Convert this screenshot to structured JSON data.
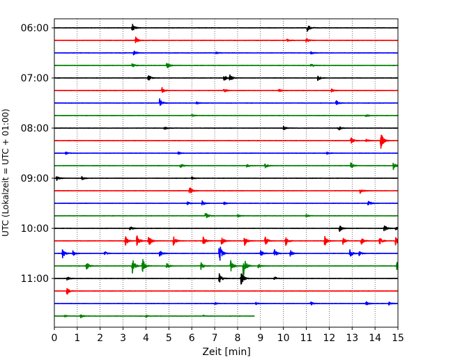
{
  "chart_data": {
    "type": "line",
    "title": "",
    "xlabel": "Zeit  [min]",
    "ylabel": "UTC (Lokalzeit = UTC + 01:00)",
    "xlim": [
      0,
      15
    ],
    "x_ticks": [
      "0",
      "1",
      "2",
      "3",
      "4",
      "5",
      "6",
      "7",
      "8",
      "9",
      "10",
      "11",
      "12",
      "13",
      "14",
      "15"
    ],
    "y_tick_labels": [
      "06:00",
      "07:00",
      "08:00",
      "09:00",
      "10:00",
      "11:00"
    ],
    "grid": "vertical dotted",
    "legend": "none",
    "colors": [
      "#000000",
      "#ff0000",
      "#0000ff",
      "#008000"
    ],
    "trace_count": 24,
    "last_trace_end_min": 8.75,
    "traces": [
      {
        "start": "06:00",
        "color": "#000000",
        "events": [
          [
            3.4,
            1.0
          ],
          [
            11.05,
            0.9
          ]
        ]
      },
      {
        "start": "06:15",
        "color": "#ff0000",
        "events": [
          [
            3.55,
            0.8
          ],
          [
            10.15,
            0.3
          ],
          [
            11.0,
            0.6
          ]
        ]
      },
      {
        "start": "06:30",
        "color": "#0000ff",
        "events": [
          [
            3.45,
            0.7
          ],
          [
            7.05,
            0.3
          ],
          [
            11.2,
            0.3
          ]
        ]
      },
      {
        "start": "06:45",
        "color": "#008000",
        "events": [
          [
            3.4,
            0.5
          ],
          [
            4.9,
            1.0
          ],
          [
            11.2,
            0.5
          ]
        ]
      },
      {
        "start": "07:00",
        "color": "#000000",
        "events": [
          [
            4.1,
            0.8
          ],
          [
            7.4,
            1.0
          ],
          [
            7.65,
            1.0
          ],
          [
            11.5,
            0.7
          ]
        ]
      },
      {
        "start": "07:15",
        "color": "#ff0000",
        "events": [
          [
            4.7,
            0.7
          ],
          [
            7.4,
            0.5
          ],
          [
            9.8,
            0.4
          ],
          [
            12.1,
            0.4
          ]
        ]
      },
      {
        "start": "07:30",
        "color": "#0000ff",
        "events": [
          [
            4.6,
            1.0
          ],
          [
            6.2,
            0.3
          ],
          [
            12.3,
            0.6
          ]
        ]
      },
      {
        "start": "07:45",
        "color": "#008000",
        "events": [
          [
            6.0,
            0.3
          ],
          [
            13.6,
            0.3
          ]
        ]
      },
      {
        "start": "08:00",
        "color": "#000000",
        "events": [
          [
            4.8,
            0.4
          ],
          [
            10.0,
            0.5
          ],
          [
            12.4,
            0.6
          ]
        ]
      },
      {
        "start": "08:15",
        "color": "#ff0000",
        "events": [
          [
            12.95,
            1.0
          ],
          [
            13.6,
            0.4
          ],
          [
            14.25,
            2.2
          ]
        ]
      },
      {
        "start": "08:30",
        "color": "#0000ff",
        "events": [
          [
            0.5,
            0.3
          ],
          [
            5.4,
            0.4
          ],
          [
            11.9,
            0.3
          ]
        ]
      },
      {
        "start": "08:45",
        "color": "#008000",
        "events": [
          [
            5.5,
            0.6
          ],
          [
            8.4,
            0.5
          ],
          [
            9.2,
            0.6
          ],
          [
            12.95,
            0.8
          ],
          [
            14.8,
            0.9
          ]
        ]
      },
      {
        "start": "09:00",
        "color": "#000000",
        "events": [
          [
            0.1,
            0.6
          ],
          [
            1.2,
            0.4
          ],
          [
            6.0,
            0.3
          ]
        ]
      },
      {
        "start": "09:15",
        "color": "#ff0000",
        "events": [
          [
            5.9,
            1.0
          ],
          [
            13.35,
            0.7
          ]
        ]
      },
      {
        "start": "09:30",
        "color": "#0000ff",
        "events": [
          [
            5.8,
            0.4
          ],
          [
            6.45,
            0.6
          ],
          [
            7.4,
            0.4
          ],
          [
            13.7,
            0.8
          ]
        ]
      },
      {
        "start": "09:45",
        "color": "#008000",
        "events": [
          [
            6.6,
            1.0
          ],
          [
            8.0,
            0.3
          ],
          [
            11.0,
            0.3
          ]
        ]
      },
      {
        "start": "10:00",
        "color": "#000000",
        "events": [
          [
            3.3,
            0.6
          ],
          [
            12.45,
            0.8
          ],
          [
            14.4,
            0.9
          ],
          [
            14.9,
            0.5
          ]
        ]
      },
      {
        "start": "10:15",
        "color": "#ff0000",
        "events": [
          [
            3.1,
            1.2
          ],
          [
            3.6,
            1.6
          ],
          [
            4.1,
            1.8
          ],
          [
            5.2,
            1.1
          ],
          [
            6.5,
            1.0
          ],
          [
            7.3,
            1.0
          ],
          [
            8.3,
            1.2
          ],
          [
            9.2,
            1.2
          ],
          [
            10.1,
            1.1
          ],
          [
            11.8,
            1.3
          ],
          [
            12.6,
            0.9
          ],
          [
            13.4,
            0.9
          ],
          [
            14.2,
            0.9
          ],
          [
            14.9,
            1.1
          ]
        ]
      },
      {
        "start": "10:30",
        "color": "#0000ff",
        "events": [
          [
            0.35,
            1.2
          ],
          [
            0.8,
            0.7
          ],
          [
            2.2,
            0.5
          ],
          [
            4.6,
            0.9
          ],
          [
            7.2,
            2.6
          ],
          [
            9.0,
            0.8
          ],
          [
            9.6,
            1.1
          ],
          [
            10.3,
            0.8
          ],
          [
            12.9,
            1.2
          ],
          [
            13.3,
            0.6
          ]
        ]
      },
      {
        "start": "10:45",
        "color": "#008000",
        "events": [
          [
            1.4,
            1.0
          ],
          [
            3.4,
            2.2
          ],
          [
            3.85,
            1.8
          ],
          [
            4.9,
            0.8
          ],
          [
            6.4,
            0.9
          ],
          [
            7.7,
            1.5
          ],
          [
            8.25,
            3.3
          ],
          [
            8.9,
            0.5
          ],
          [
            14.95,
            1.0
          ]
        ]
      },
      {
        "start": "11:00",
        "color": "#000000",
        "events": [
          [
            0.55,
            0.5
          ],
          [
            7.2,
            1.4
          ],
          [
            8.15,
            1.8
          ],
          [
            9.6,
            0.5
          ]
        ]
      },
      {
        "start": "11:15",
        "color": "#ff0000",
        "events": [
          [
            0.55,
            0.9
          ]
        ]
      },
      {
        "start": "11:30",
        "color": "#0000ff",
        "events": [
          [
            7.0,
            0.3
          ],
          [
            8.8,
            0.3
          ],
          [
            11.2,
            0.4
          ],
          [
            13.6,
            0.6
          ],
          [
            14.6,
            0.4
          ]
        ]
      },
      {
        "start": "11:45",
        "color": "#008000",
        "events": [
          [
            0.45,
            0.3
          ],
          [
            1.15,
            0.4
          ],
          [
            4.0,
            0.3
          ],
          [
            6.5,
            0.2
          ]
        ]
      }
    ]
  }
}
